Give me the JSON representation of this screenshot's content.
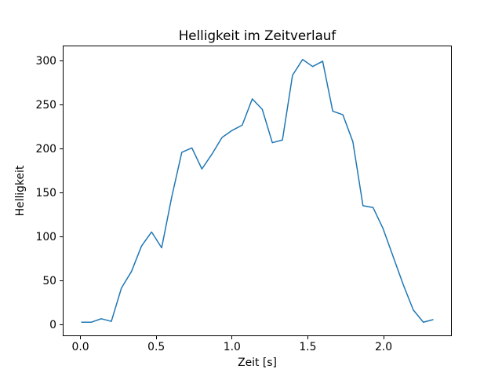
{
  "figure": {
    "background": "#ffffff",
    "text_color": "#000000"
  },
  "chart_data": {
    "type": "line",
    "title": "Helligkeit im Zeitverlauf",
    "xlabel": "Zeit [s]",
    "ylabel": "Helligkeit",
    "series_color": "#1f77b4",
    "line_width": 1.5,
    "grid": false,
    "legend_position": "none",
    "x": [
      0.0,
      0.0667,
      0.1333,
      0.2,
      0.2667,
      0.3333,
      0.4,
      0.4667,
      0.5333,
      0.6,
      0.6667,
      0.7333,
      0.8,
      0.8667,
      0.9333,
      1.0,
      1.0667,
      1.1333,
      1.2,
      1.2667,
      1.3333,
      1.4,
      1.4667,
      1.5333,
      1.6,
      1.6667,
      1.7333,
      1.8,
      1.8667,
      1.9333,
      2.0,
      2.0667,
      2.1333,
      2.2,
      2.2667,
      2.3333
    ],
    "values": [
      3,
      3,
      7,
      4,
      42,
      61,
      90,
      106,
      88,
      146,
      197,
      202,
      178,
      195,
      214,
      222,
      228,
      258,
      246,
      208,
      211,
      285,
      303,
      295,
      301,
      244,
      240,
      209,
      136,
      134,
      110,
      78,
      46,
      17,
      3,
      6
    ],
    "xlim": [
      -0.1167,
      2.45
    ],
    "ylim": [
      -12,
      318
    ],
    "xticks": [
      {
        "value": 0.0,
        "label": "0.0"
      },
      {
        "value": 0.5,
        "label": "0.5"
      },
      {
        "value": 1.0,
        "label": "1.0"
      },
      {
        "value": 1.5,
        "label": "1.5"
      },
      {
        "value": 2.0,
        "label": "2.0"
      }
    ],
    "yticks": [
      {
        "value": 0,
        "label": "0"
      },
      {
        "value": 50,
        "label": "50"
      },
      {
        "value": 100,
        "label": "100"
      },
      {
        "value": 150,
        "label": "150"
      },
      {
        "value": 200,
        "label": "200"
      },
      {
        "value": 250,
        "label": "250"
      },
      {
        "value": 300,
        "label": "300"
      }
    ]
  }
}
